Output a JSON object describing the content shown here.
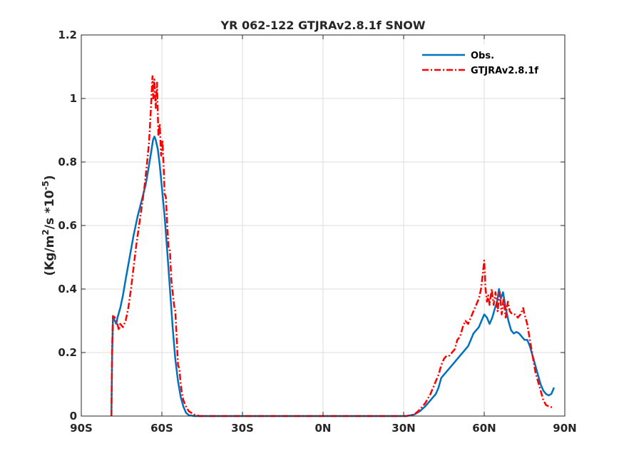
{
  "chart_data": {
    "type": "line",
    "title": "YR 062-122 GTJRAv2.8.1f SNOW",
    "ylabel_base": "(Kg/m",
    "ylabel_sup1": "2",
    "ylabel_mid": "/s *10",
    "ylabel_sup2": "-5",
    "ylabel_end": ")",
    "xlim": [
      -90,
      90
    ],
    "ylim": [
      0,
      1.2
    ],
    "x_ticks": [
      {
        "value": -90,
        "label": "90S"
      },
      {
        "value": -60,
        "label": "60S"
      },
      {
        "value": -30,
        "label": "30S"
      },
      {
        "value": 0,
        "label": "0N"
      },
      {
        "value": 30,
        "label": "30N"
      },
      {
        "value": 60,
        "label": "60N"
      },
      {
        "value": 90,
        "label": "90N"
      }
    ],
    "y_ticks": [
      {
        "value": 0,
        "label": "0"
      },
      {
        "value": 0.2,
        "label": "0.2"
      },
      {
        "value": 0.4,
        "label": "0.4"
      },
      {
        "value": 0.6,
        "label": "0.6"
      },
      {
        "value": 0.8,
        "label": "0.8"
      },
      {
        "value": 1.0,
        "label": "1"
      },
      {
        "value": 1.2,
        "label": "1.2"
      }
    ],
    "grid": true,
    "legend_position": "top-right",
    "series": [
      {
        "name": "Obs.",
        "color": "#0072BD",
        "style": "solid",
        "points": [
          [
            -78.8,
            0
          ],
          [
            -78.5,
            0.2
          ],
          [
            -78.2,
            0.31
          ],
          [
            -77.5,
            0.3
          ],
          [
            -77,
            0.29
          ],
          [
            -76.5,
            0.31
          ],
          [
            -75.5,
            0.34
          ],
          [
            -74.5,
            0.38
          ],
          [
            -73.5,
            0.43
          ],
          [
            -72,
            0.5
          ],
          [
            -70.5,
            0.57
          ],
          [
            -69,
            0.63
          ],
          [
            -67.5,
            0.68
          ],
          [
            -66,
            0.73
          ],
          [
            -65,
            0.78
          ],
          [
            -64,
            0.83
          ],
          [
            -63.3,
            0.87
          ],
          [
            -62.8,
            0.88
          ],
          [
            -62.3,
            0.87
          ],
          [
            -61.5,
            0.84
          ],
          [
            -60.8,
            0.79
          ],
          [
            -60,
            0.72
          ],
          [
            -59,
            0.63
          ],
          [
            -58,
            0.52
          ],
          [
            -57,
            0.4
          ],
          [
            -56,
            0.28
          ],
          [
            -55,
            0.18
          ],
          [
            -54,
            0.11
          ],
          [
            -53,
            0.06
          ],
          [
            -52,
            0.03
          ],
          [
            -51,
            0.01
          ],
          [
            -50,
            0.003
          ],
          [
            -48,
            0
          ],
          [
            -40,
            0
          ],
          [
            -20,
            0
          ],
          [
            0,
            0
          ],
          [
            20,
            0
          ],
          [
            31,
            0
          ],
          [
            34,
            0.005
          ],
          [
            36,
            0.015
          ],
          [
            38,
            0.03
          ],
          [
            40,
            0.05
          ],
          [
            42,
            0.07
          ],
          [
            43,
            0.09
          ],
          [
            44,
            0.12
          ],
          [
            45,
            0.13
          ],
          [
            46,
            0.14
          ],
          [
            47,
            0.15
          ],
          [
            48,
            0.16
          ],
          [
            49,
            0.17
          ],
          [
            50,
            0.18
          ],
          [
            51,
            0.19
          ],
          [
            52,
            0.2
          ],
          [
            53,
            0.21
          ],
          [
            54,
            0.22
          ],
          [
            55,
            0.24
          ],
          [
            56,
            0.26
          ],
          [
            57,
            0.27
          ],
          [
            58,
            0.28
          ],
          [
            59,
            0.3
          ],
          [
            60,
            0.32
          ],
          [
            61,
            0.31
          ],
          [
            62,
            0.29
          ],
          [
            63,
            0.31
          ],
          [
            64,
            0.34
          ],
          [
            64.8,
            0.36
          ],
          [
            65.5,
            0.4
          ],
          [
            66.2,
            0.37
          ],
          [
            67,
            0.39
          ],
          [
            68,
            0.34
          ],
          [
            69,
            0.3
          ],
          [
            70,
            0.27
          ],
          [
            71,
            0.26
          ],
          [
            72,
            0.265
          ],
          [
            73,
            0.26
          ],
          [
            74,
            0.25
          ],
          [
            75,
            0.24
          ],
          [
            76,
            0.24
          ],
          [
            77,
            0.22
          ],
          [
            78,
            0.19
          ],
          [
            79,
            0.16
          ],
          [
            80,
            0.13
          ],
          [
            81,
            0.1
          ],
          [
            82,
            0.08
          ],
          [
            83,
            0.07
          ],
          [
            84,
            0.065
          ],
          [
            85,
            0.07
          ],
          [
            86,
            0.09
          ]
        ]
      },
      {
        "name": "GTJRAv2.8.1f",
        "color": "#FF0000",
        "style": "dashdot",
        "points": [
          [
            -78.8,
            0
          ],
          [
            -78.5,
            0.22
          ],
          [
            -78.2,
            0.315
          ],
          [
            -77.5,
            0.31
          ],
          [
            -76.8,
            0.3
          ],
          [
            -76,
            0.27
          ],
          [
            -75.5,
            0.29
          ],
          [
            -74.5,
            0.28
          ],
          [
            -73.5,
            0.3
          ],
          [
            -72.5,
            0.34
          ],
          [
            -71.5,
            0.4
          ],
          [
            -70.5,
            0.47
          ],
          [
            -69.5,
            0.54
          ],
          [
            -68.5,
            0.6
          ],
          [
            -67.5,
            0.66
          ],
          [
            -66.5,
            0.72
          ],
          [
            -65.5,
            0.8
          ],
          [
            -64.8,
            0.86
          ],
          [
            -64.2,
            0.95
          ],
          [
            -63.8,
            1.02
          ],
          [
            -63.5,
            1.07
          ],
          [
            -63.2,
            1.0
          ],
          [
            -62.8,
            1.06
          ],
          [
            -62.3,
            0.97
          ],
          [
            -61.8,
            1.05
          ],
          [
            -61.3,
            0.88
          ],
          [
            -60.8,
            0.92
          ],
          [
            -60.3,
            0.82
          ],
          [
            -59.8,
            0.87
          ],
          [
            -59.3,
            0.78
          ],
          [
            -59,
            0.7
          ],
          [
            -58.5,
            0.69
          ],
          [
            -58,
            0.6
          ],
          [
            -57.5,
            0.53
          ],
          [
            -57,
            0.52
          ],
          [
            -56.5,
            0.43
          ],
          [
            -56,
            0.39
          ],
          [
            -55.5,
            0.35
          ],
          [
            -55,
            0.33
          ],
          [
            -54.5,
            0.25
          ],
          [
            -54,
            0.16
          ],
          [
            -53.5,
            0.15
          ],
          [
            -53,
            0.1
          ],
          [
            -52.5,
            0.07
          ],
          [
            -52,
            0.05
          ],
          [
            -51,
            0.03
          ],
          [
            -50,
            0.015
          ],
          [
            -48,
            0.005
          ],
          [
            -46,
            0
          ],
          [
            -30,
            0
          ],
          [
            0,
            0
          ],
          [
            31,
            0
          ],
          [
            34,
            0.005
          ],
          [
            36,
            0.02
          ],
          [
            38,
            0.04
          ],
          [
            40,
            0.07
          ],
          [
            41,
            0.09
          ],
          [
            42,
            0.11
          ],
          [
            43,
            0.13
          ],
          [
            44,
            0.16
          ],
          [
            45,
            0.18
          ],
          [
            46,
            0.19
          ],
          [
            47,
            0.19
          ],
          [
            48,
            0.2
          ],
          [
            49,
            0.21
          ],
          [
            50,
            0.24
          ],
          [
            51,
            0.25
          ],
          [
            52,
            0.28
          ],
          [
            53,
            0.3
          ],
          [
            54,
            0.29
          ],
          [
            55,
            0.31
          ],
          [
            56,
            0.33
          ],
          [
            57,
            0.35
          ],
          [
            58,
            0.37
          ],
          [
            58.8,
            0.4
          ],
          [
            59.5,
            0.45
          ],
          [
            60,
            0.49
          ],
          [
            60.5,
            0.4
          ],
          [
            61,
            0.36
          ],
          [
            61.5,
            0.38
          ],
          [
            62,
            0.35
          ],
          [
            62.8,
            0.4
          ],
          [
            63.5,
            0.35
          ],
          [
            64.2,
            0.39
          ],
          [
            65,
            0.33
          ],
          [
            65.8,
            0.39
          ],
          [
            66.5,
            0.32
          ],
          [
            67.2,
            0.37
          ],
          [
            68,
            0.31
          ],
          [
            68.8,
            0.36
          ],
          [
            69.5,
            0.33
          ],
          [
            70.5,
            0.32
          ],
          [
            71.5,
            0.32
          ],
          [
            72.5,
            0.31
          ],
          [
            73.5,
            0.32
          ],
          [
            74.5,
            0.34
          ],
          [
            75,
            0.32
          ],
          [
            76,
            0.29
          ],
          [
            77,
            0.24
          ],
          [
            78,
            0.19
          ],
          [
            79,
            0.14
          ],
          [
            80,
            0.11
          ],
          [
            81,
            0.08
          ],
          [
            82,
            0.05
          ],
          [
            83,
            0.035
          ],
          [
            84,
            0.03
          ],
          [
            85,
            0.028
          ],
          [
            86,
            0.025
          ]
        ]
      }
    ]
  }
}
